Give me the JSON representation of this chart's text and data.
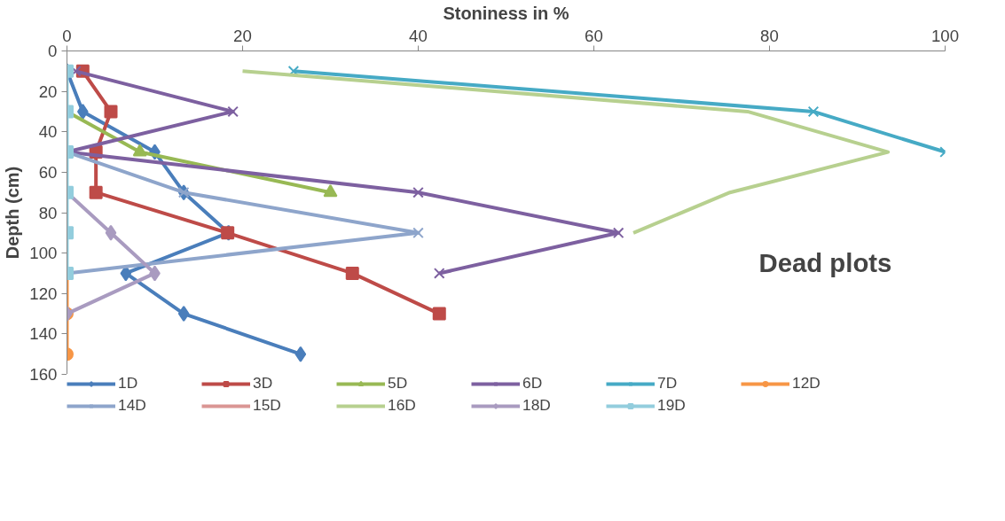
{
  "chart_data": {
    "type": "line",
    "orientation": "horizontal",
    "xlabel": "Stoniness in %",
    "ylabel": "Depth (cm)",
    "xlim": [
      0,
      100
    ],
    "xticks": [
      0,
      20,
      40,
      60,
      80,
      100
    ],
    "ylim": [
      160,
      0
    ],
    "yticks": [
      0,
      20,
      40,
      60,
      80,
      100,
      120,
      140,
      160
    ],
    "grid": false,
    "legend": "bottom",
    "line_style": "solid",
    "annotations": [
      "Dead plots"
    ],
    "x": [
      10,
      30,
      50,
      70,
      90,
      110,
      130,
      150
    ],
    "series": [
      {
        "name": "1D",
        "color": "#4a7ebb",
        "marker": "diamond",
        "values": [
          0,
          1.8,
          10,
          13.3,
          18.4,
          6.7,
          13.3,
          26.6
        ]
      },
      {
        "name": "3D",
        "color": "#be4b48",
        "marker": "square",
        "values": [
          1.8,
          5,
          3.3,
          3.3,
          18.3,
          32.5,
          42.4,
          null
        ]
      },
      {
        "name": "5D",
        "color": "#98b954",
        "marker": "triangle",
        "values": [
          null,
          0,
          8.3,
          30,
          null,
          null,
          null,
          null
        ]
      },
      {
        "name": "6D",
        "color": "#7d60a0",
        "marker": "cross",
        "values": [
          1,
          18.9,
          0,
          40,
          62.8,
          42.4,
          null,
          null
        ]
      },
      {
        "name": "7D",
        "color": "#46aac5",
        "marker": "cross",
        "values": [
          25.8,
          85,
          100,
          null,
          null,
          null,
          null,
          null
        ]
      },
      {
        "name": "12D",
        "color": "#f79646",
        "marker": "circle",
        "values": [
          null,
          null,
          null,
          null,
          null,
          0,
          0,
          0
        ]
      },
      {
        "name": "14D",
        "color": "#8eA5cb",
        "marker": "cross",
        "values": [
          null,
          null,
          0,
          13.3,
          40,
          0,
          null,
          null
        ]
      },
      {
        "name": "15D",
        "color": "#da9694",
        "marker": "none",
        "values": [
          null,
          null,
          null,
          null,
          null,
          null,
          null,
          null
        ]
      },
      {
        "name": "16D",
        "color": "#b7d08f",
        "marker": "none",
        "values": [
          20,
          77.5,
          93.5,
          75.5,
          64.5,
          null,
          null,
          null
        ]
      },
      {
        "name": "18D",
        "color": "#a99bc0",
        "marker": "diamond",
        "values": [
          null,
          null,
          null,
          0,
          5,
          10,
          0,
          null
        ]
      },
      {
        "name": "19D",
        "color": "#93cddd",
        "marker": "square",
        "values": [
          0,
          0,
          0,
          0,
          0,
          0,
          null,
          null
        ]
      }
    ]
  }
}
